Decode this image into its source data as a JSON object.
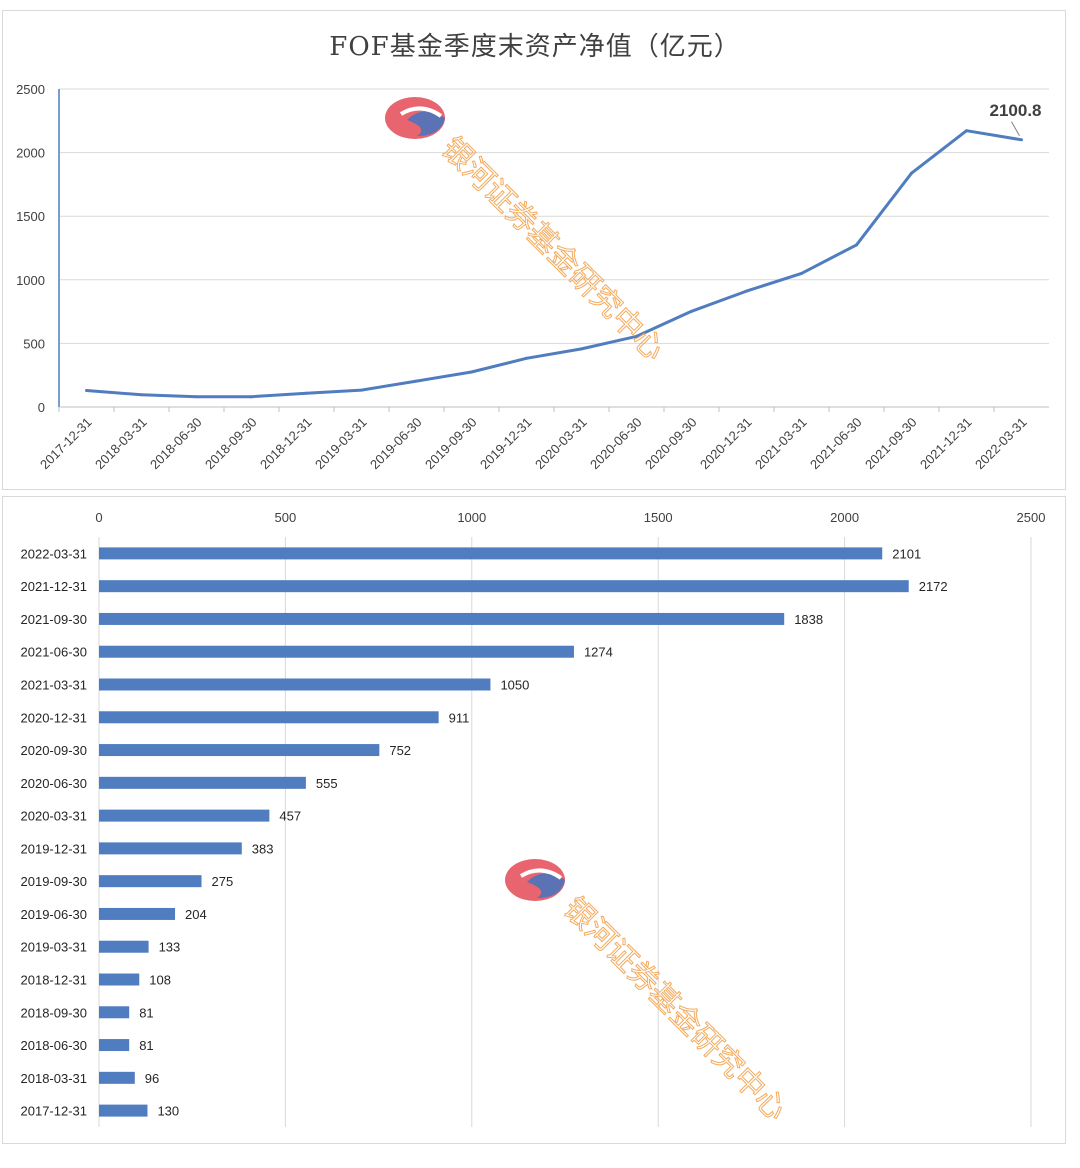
{
  "colors": {
    "series": "#4f7dbf",
    "grid": "#d9d9d9",
    "watermark_red": "#e8646e",
    "watermark_blue": "#5b73b5",
    "watermark_text": "#f3a24c"
  },
  "watermark": {
    "text": "银河证券基金研究中心"
  },
  "chart_data": [
    {
      "type": "line",
      "title": "FOF基金季度末资产净值（亿元）",
      "xlabel": "",
      "ylabel": "",
      "ylim": [
        0,
        2500
      ],
      "yticks": [
        0,
        500,
        1000,
        1500,
        2000,
        2500
      ],
      "categories": [
        "2017-12-31",
        "2018-03-31",
        "2018-06-30",
        "2018-09-30",
        "2018-12-31",
        "2019-03-31",
        "2019-06-30",
        "2019-09-30",
        "2019-12-31",
        "2020-03-31",
        "2020-06-30",
        "2020-09-30",
        "2020-12-31",
        "2021-03-31",
        "2021-06-30",
        "2021-09-30",
        "2021-12-31",
        "2022-03-31"
      ],
      "values": [
        130,
        96,
        81,
        81,
        108,
        133,
        204,
        275,
        383,
        457,
        555,
        752,
        911,
        1050,
        1274,
        1838,
        2172,
        2100.8
      ],
      "annotation": {
        "label": "2100.8",
        "category": "2022-03-31"
      },
      "grid": true
    },
    {
      "type": "bar",
      "orientation": "horizontal",
      "xlim": [
        0,
        2500
      ],
      "xticks": [
        0,
        500,
        1000,
        1500,
        2000,
        2500
      ],
      "categories": [
        "2022-03-31",
        "2021-12-31",
        "2021-09-30",
        "2021-06-30",
        "2021-03-31",
        "2020-12-31",
        "2020-09-30",
        "2020-06-30",
        "2020-03-31",
        "2019-12-31",
        "2019-09-30",
        "2019-06-30",
        "2019-03-31",
        "2018-12-31",
        "2018-09-30",
        "2018-06-30",
        "2018-03-31",
        "2017-12-31"
      ],
      "values": [
        2101,
        2172,
        1838,
        1274,
        1050,
        911,
        752,
        555,
        457,
        383,
        275,
        204,
        133,
        108,
        81,
        81,
        96,
        130
      ],
      "grid": true
    }
  ]
}
